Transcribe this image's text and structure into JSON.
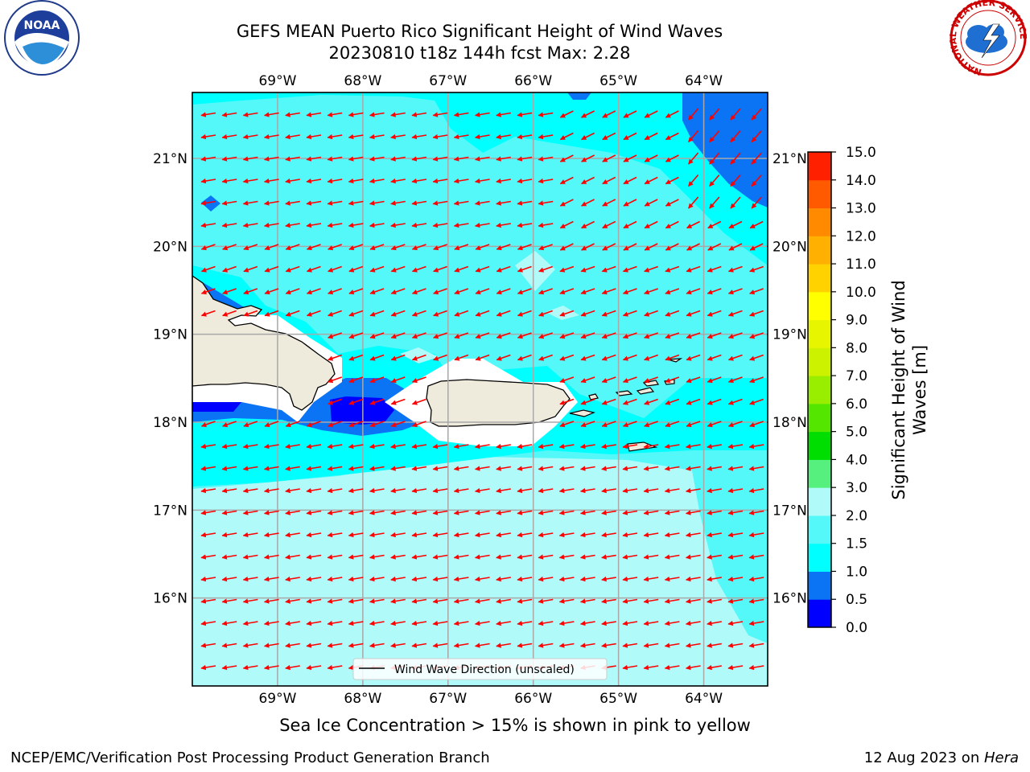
{
  "title": {
    "line1": "GEFS MEAN Puerto Rico Significant Height of Wind Waves",
    "line2": "20230810 t18z 144h fcst   Max: 2.28"
  },
  "logos": {
    "noara": "NOAA",
    "nws_ring": "NATIONAL WEATHER SERVICE"
  },
  "map": {
    "lon_range": [
      -70.0,
      -63.25
    ],
    "lat_range": [
      15.0,
      21.75
    ],
    "lon_labels": [
      "69°W",
      "68°W",
      "67°W",
      "66°W",
      "65°W",
      "64°W"
    ],
    "lon_values": [
      -69,
      -68,
      -67,
      -66,
      -65,
      -64
    ],
    "lat_labels": [
      "16°N",
      "17°N",
      "18°N",
      "19°N",
      "20°N",
      "21°N"
    ],
    "lat_values": [
      16,
      17,
      18,
      19,
      20,
      21
    ],
    "grid": true,
    "arrow_color": "#ff0000",
    "land_color": "#efebdc",
    "legend_entry": "Wind Wave Direction (unscaled)",
    "legend_position": "bottom-center"
  },
  "colorbar": {
    "label": "Significant Height of Wind Waves [m]",
    "label_line1": "Significant Height of Wind",
    "label_line2": "Waves [m]",
    "levels": [
      0.0,
      0.5,
      1.0,
      1.5,
      2.0,
      3.0,
      4.0,
      5.0,
      6.0,
      7.0,
      8.0,
      9.0,
      10.0,
      11.0,
      12.0,
      13.0,
      14.0,
      15.0
    ],
    "tick_labels": [
      "0.0",
      "0.5",
      "1.0",
      "1.5",
      "2.0",
      "3.0",
      "4.0",
      "5.0",
      "6.0",
      "7.0",
      "8.0",
      "9.0",
      "10.0",
      "11.0",
      "12.0",
      "13.0",
      "14.0",
      "15.0"
    ],
    "colors": [
      "#0000ff",
      "#0a74f5",
      "#00ffff",
      "#54f8f8",
      "#b0fafa",
      "#55f07d",
      "#00dd00",
      "#55e600",
      "#99ee00",
      "#ccf200",
      "#e8f500",
      "#ffff00",
      "#ffd200",
      "#ffb000",
      "#ff8a00",
      "#ff5a00",
      "#ff2000"
    ]
  },
  "notes": {
    "sea_ice": "Sea Ice Concentration > 15% is shown in pink to yellow",
    "producer": "NCEP/EMC/Verification Post Processing Product Generation Branch",
    "date": "12 Aug 2023 on ",
    "machine": "Hera"
  }
}
